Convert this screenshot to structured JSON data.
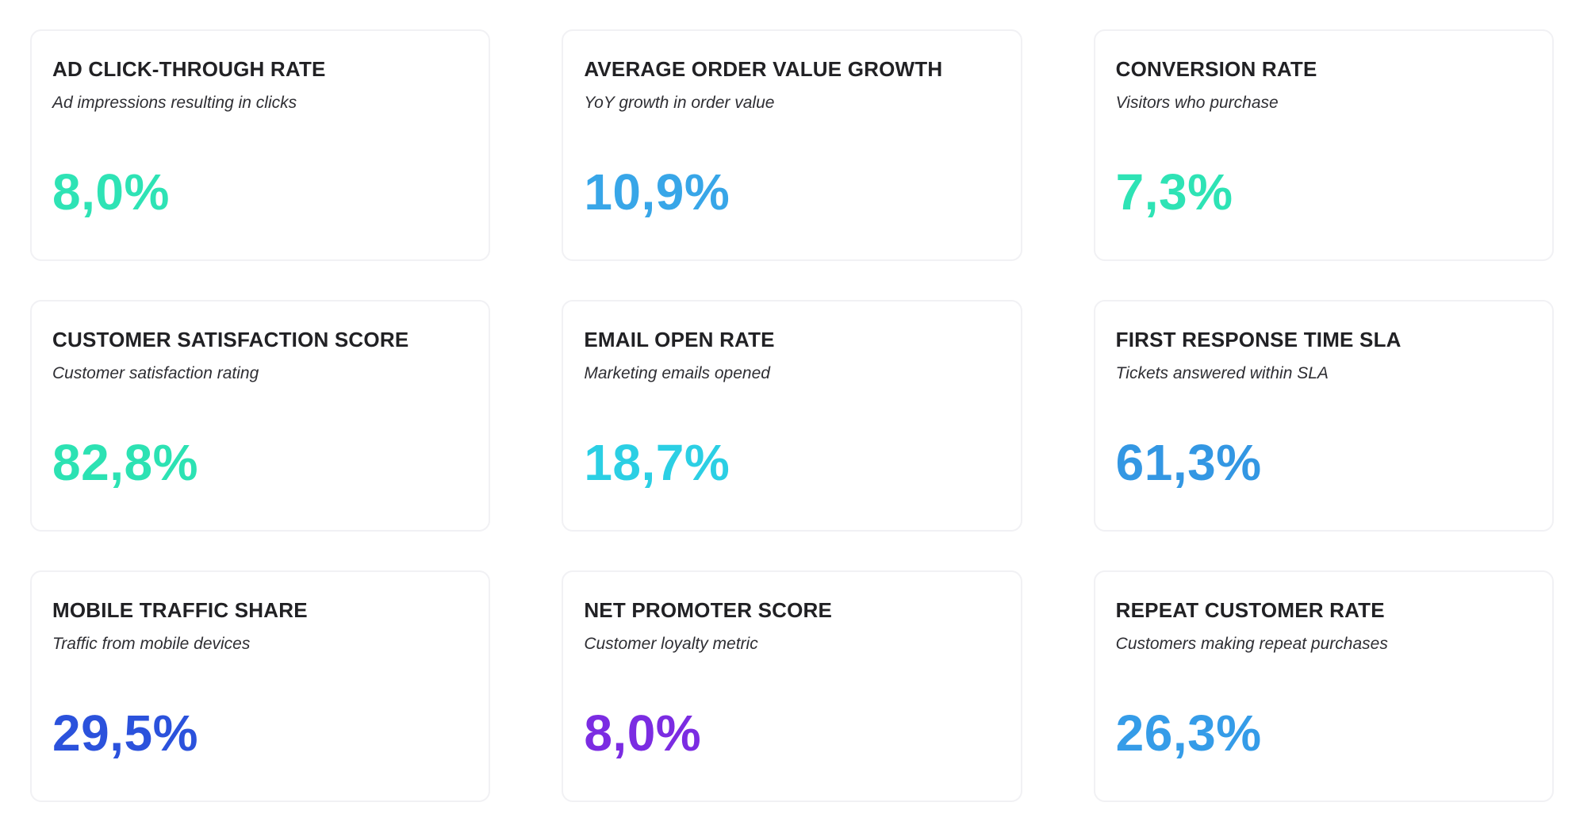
{
  "page": {
    "background": "#ffffff"
  },
  "colors": {
    "card_border": "#f1f1f4",
    "title_text": "#212124",
    "subtitle_text": "#2e2e33",
    "teal": "#2ee3b5",
    "cyan": "#2bcfe4",
    "light_blue": "#38a6e8",
    "blue": "#3397e3",
    "royal_blue": "#2b52dc",
    "purple": "#7b2ce2"
  },
  "cards": [
    {
      "id": "ad-click-through-rate",
      "title": "AD CLICK-THROUGH RATE",
      "subtitle": "Ad impressions resulting in clicks",
      "value": "8,0%",
      "value_color": "#2ee3b5"
    },
    {
      "id": "average-order-value-growth",
      "title": "AVERAGE ORDER VALUE GROWTH",
      "subtitle": "YoY growth in order value",
      "value": "10,9%",
      "value_color": "#38a6e8"
    },
    {
      "id": "conversion-rate",
      "title": "CONVERSION RATE",
      "subtitle": "Visitors who purchase",
      "value": "7,3%",
      "value_color": "#2ee3b5"
    },
    {
      "id": "customer-satisfaction-score",
      "title": "CUSTOMER SATISFACTION SCORE",
      "subtitle": "Customer satisfaction rating",
      "value": "82,8%",
      "value_color": "#2ce2b3"
    },
    {
      "id": "email-open-rate",
      "title": "EMAIL OPEN RATE",
      "subtitle": "Marketing emails opened",
      "value": "18,7%",
      "value_color": "#2bcfe4"
    },
    {
      "id": "first-response-time-sla",
      "title": "FIRST RESPONSE TIME SLA",
      "subtitle": "Tickets answered within SLA",
      "value": "61,3%",
      "value_color": "#3397e3"
    },
    {
      "id": "mobile-traffic-share",
      "title": "MOBILE TRAFFIC SHARE",
      "subtitle": "Traffic from mobile devices",
      "value": "29,5%",
      "value_color": "#2b52dc"
    },
    {
      "id": "net-promoter-score",
      "title": "NET PROMOTER SCORE",
      "subtitle": "Customer loyalty metric",
      "value": "8,0%",
      "value_color": "#7b2ce2"
    },
    {
      "id": "repeat-customer-rate",
      "title": "REPEAT CUSTOMER RATE",
      "subtitle": "Customers making repeat purchases",
      "value": "26,3%",
      "value_color": "#359ce8"
    }
  ]
}
